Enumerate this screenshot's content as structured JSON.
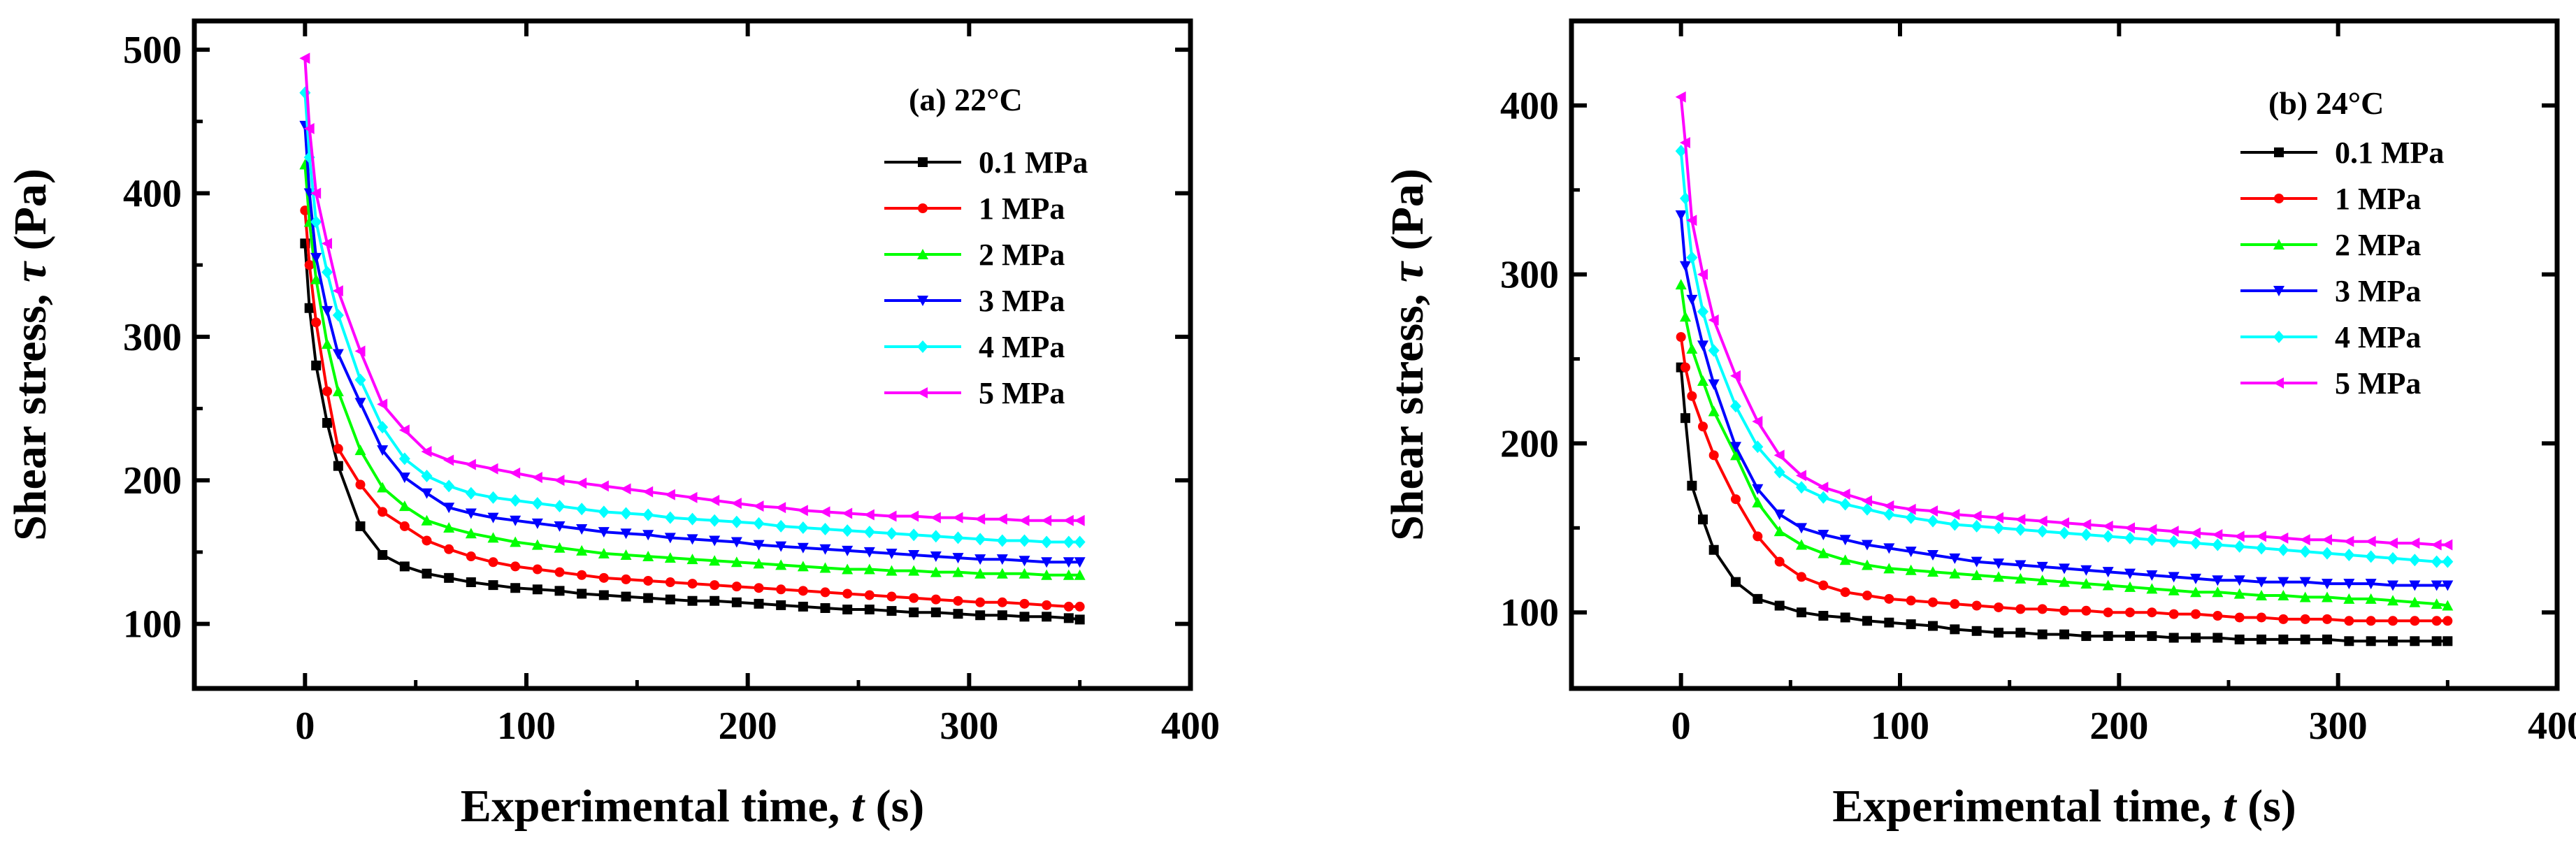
{
  "chart_data": [
    {
      "type": "line",
      "panel_label": "(a) 22°C",
      "xlabel": "Experimental time, ",
      "xlabel_var": "t",
      "xlabel_unit": " (s)",
      "ylabel": "Shear stress, ",
      "ylabel_var": "τ",
      "ylabel_unit": " (Pa)",
      "xlim": [
        -50,
        400
      ],
      "ylim": [
        55,
        520
      ],
      "xticks": [
        0,
        100,
        200,
        300,
        400
      ],
      "yticks": [
        100,
        200,
        300,
        400,
        500
      ],
      "legend_position": "top-right",
      "x": [
        0,
        2,
        5,
        10,
        15,
        25,
        35,
        45,
        55,
        65,
        75,
        85,
        95,
        105,
        115,
        125,
        135,
        145,
        155,
        165,
        175,
        185,
        195,
        205,
        215,
        225,
        235,
        245,
        255,
        265,
        275,
        285,
        295,
        305,
        315,
        325,
        335,
        345,
        350
      ],
      "series": [
        {
          "name": "0.1 MPa",
          "color": "#000000",
          "marker": "square",
          "values": [
            365,
            320,
            280,
            240,
            210,
            168,
            148,
            140,
            135,
            132,
            129,
            127,
            125,
            124,
            123,
            121,
            120,
            119,
            118,
            117,
            116,
            116,
            115,
            114,
            113,
            112,
            111,
            110,
            110,
            109,
            108,
            108,
            107,
            106,
            106,
            105,
            105,
            104,
            103
          ]
        },
        {
          "name": "1 MPa",
          "color": "#ff0000",
          "marker": "circle",
          "values": [
            388,
            350,
            310,
            262,
            222,
            197,
            178,
            168,
            158,
            152,
            147,
            143,
            140,
            138,
            136,
            134,
            132,
            131,
            130,
            129,
            128,
            127,
            126,
            125,
            124,
            123,
            122,
            121,
            120,
            119,
            118,
            117,
            116,
            115,
            115,
            114,
            113,
            112,
            112
          ]
        },
        {
          "name": "2 MPa",
          "color": "#00ff00",
          "marker": "triangle-up",
          "values": [
            420,
            380,
            340,
            295,
            262,
            221,
            195,
            182,
            172,
            167,
            163,
            160,
            157,
            155,
            153,
            151,
            149,
            148,
            147,
            146,
            145,
            144,
            143,
            142,
            141,
            140,
            139,
            138,
            138,
            137,
            137,
            136,
            136,
            135,
            135,
            135,
            134,
            134,
            134
          ]
        },
        {
          "name": "3 MPa",
          "color": "#0000ff",
          "marker": "triangle-down",
          "values": [
            447,
            400,
            355,
            318,
            288,
            254,
            221,
            202,
            191,
            181,
            177,
            174,
            172,
            170,
            168,
            166,
            164,
            163,
            162,
            160,
            159,
            158,
            157,
            155,
            154,
            153,
            152,
            151,
            150,
            149,
            148,
            147,
            146,
            145,
            145,
            144,
            143,
            143,
            143
          ]
        },
        {
          "name": "4 MPa",
          "color": "#00ffff",
          "marker": "diamond",
          "values": [
            470,
            425,
            380,
            345,
            315,
            270,
            237,
            215,
            203,
            196,
            191,
            188,
            186,
            184,
            182,
            180,
            178,
            177,
            176,
            174,
            173,
            172,
            171,
            170,
            168,
            167,
            166,
            165,
            164,
            163,
            162,
            161,
            160,
            159,
            158,
            158,
            157,
            157,
            157
          ]
        },
        {
          "name": "5 MPa",
          "color": "#ff00ff",
          "marker": "triangle-left",
          "values": [
            494,
            445,
            400,
            365,
            332,
            290,
            253,
            235,
            220,
            214,
            211,
            208,
            205,
            202,
            200,
            198,
            196,
            194,
            192,
            190,
            188,
            186,
            184,
            182,
            181,
            179,
            178,
            177,
            176,
            175,
            175,
            174,
            174,
            173,
            173,
            172,
            172,
            172,
            172
          ]
        }
      ]
    },
    {
      "type": "line",
      "panel_label": "(b) 24°C",
      "xlabel": "Experimental time, ",
      "xlabel_var": "t",
      "xlabel_unit": " (s)",
      "ylabel": "Shear stress, ",
      "ylabel_var": "τ",
      "ylabel_unit": " (Pa)",
      "xlim": [
        -50,
        400
      ],
      "ylim": [
        55,
        450
      ],
      "xticks": [
        0,
        100,
        200,
        300,
        400
      ],
      "yticks": [
        100,
        200,
        300,
        400
      ],
      "legend_position": "top-right",
      "x": [
        0,
        2,
        5,
        10,
        15,
        25,
        35,
        45,
        55,
        65,
        75,
        85,
        95,
        105,
        115,
        125,
        135,
        145,
        155,
        165,
        175,
        185,
        195,
        205,
        215,
        225,
        235,
        245,
        255,
        265,
        275,
        285,
        295,
        305,
        315,
        325,
        335,
        345,
        350
      ],
      "series": [
        {
          "name": "0.1 MPa",
          "color": "#000000",
          "marker": "square",
          "values": [
            245,
            215,
            175,
            155,
            137,
            118,
            108,
            104,
            100,
            98,
            97,
            95,
            94,
            93,
            92,
            90,
            89,
            88,
            88,
            87,
            87,
            86,
            86,
            86,
            86,
            85,
            85,
            85,
            84,
            84,
            84,
            84,
            84,
            83,
            83,
            83,
            83,
            83,
            83
          ]
        },
        {
          "name": "1 MPa",
          "color": "#ff0000",
          "marker": "circle",
          "values": [
            263,
            245,
            228,
            210,
            193,
            167,
            145,
            130,
            121,
            116,
            112,
            110,
            108,
            107,
            106,
            105,
            104,
            103,
            102,
            102,
            101,
            101,
            100,
            100,
            100,
            99,
            99,
            98,
            97,
            97,
            96,
            96,
            96,
            95,
            95,
            95,
            95,
            95,
            95
          ]
        },
        {
          "name": "2 MPa",
          "color": "#00ff00",
          "marker": "triangle-up",
          "values": [
            294,
            275,
            256,
            237,
            219,
            193,
            165,
            148,
            140,
            135,
            131,
            128,
            126,
            125,
            124,
            123,
            122,
            121,
            120,
            119,
            118,
            117,
            116,
            115,
            114,
            113,
            112,
            112,
            111,
            110,
            110,
            109,
            109,
            108,
            108,
            107,
            106,
            105,
            104
          ]
        },
        {
          "name": "3 MPa",
          "color": "#0000ff",
          "marker": "triangle-down",
          "values": [
            335,
            305,
            285,
            258,
            235,
            198,
            173,
            158,
            150,
            146,
            143,
            140,
            138,
            136,
            134,
            132,
            130,
            129,
            128,
            127,
            126,
            125,
            124,
            123,
            122,
            121,
            120,
            119,
            119,
            118,
            118,
            118,
            117,
            117,
            117,
            116,
            116,
            116,
            116
          ]
        },
        {
          "name": "4 MPa",
          "color": "#00ffff",
          "marker": "diamond",
          "values": [
            373,
            345,
            310,
            278,
            255,
            222,
            198,
            183,
            174,
            168,
            164,
            161,
            158,
            156,
            154,
            152,
            151,
            150,
            149,
            148,
            147,
            146,
            145,
            144,
            143,
            142,
            141,
            140,
            139,
            138,
            137,
            136,
            135,
            134,
            133,
            132,
            131,
            130,
            130
          ]
        },
        {
          "name": "5 MPa",
          "color": "#ff00ff",
          "marker": "triangle-left",
          "values": [
            405,
            378,
            332,
            300,
            273,
            240,
            213,
            193,
            181,
            174,
            170,
            166,
            163,
            161,
            160,
            158,
            157,
            156,
            155,
            154,
            153,
            152,
            151,
            150,
            149,
            148,
            147,
            146,
            145,
            145,
            144,
            143,
            143,
            142,
            142,
            141,
            141,
            140,
            140
          ]
        }
      ]
    }
  ]
}
